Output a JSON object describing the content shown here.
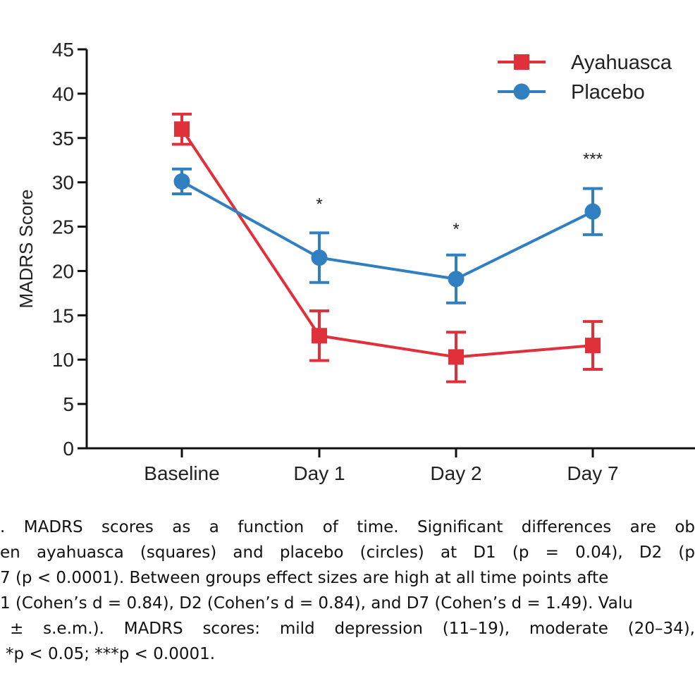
{
  "chart_data": {
    "type": "line",
    "categories": [
      "Baseline",
      "Day 1",
      "Day 2",
      "Day 7"
    ],
    "ylabel": "MADRS Score",
    "xlabel": "",
    "ylim": [
      0,
      45
    ],
    "yticks": [
      0,
      5,
      10,
      15,
      20,
      25,
      30,
      35,
      40,
      45
    ],
    "grid": false,
    "legend_position": "top-right",
    "series": [
      {
        "name": "Ayahuasca",
        "marker": "square",
        "color": "#e0303a",
        "values": [
          36.0,
          12.7,
          10.3,
          11.6
        ],
        "errors": [
          1.7,
          2.8,
          2.8,
          2.7
        ]
      },
      {
        "name": "Placebo",
        "marker": "circle",
        "color": "#2f7fc1",
        "values": [
          30.1,
          21.5,
          19.1,
          26.7
        ],
        "errors": [
          1.4,
          2.8,
          2.7,
          2.6
        ]
      }
    ],
    "annotations": [
      {
        "category": "Day 1",
        "text": "*",
        "y": 27.7
      },
      {
        "category": "Day 2",
        "text": "*",
        "y": 24.9
      },
      {
        "category": "Day 7",
        "text": "***",
        "y": 32.8
      }
    ]
  },
  "caption": {
    "lines": [
      ". MADRS scores as a function of time. Significant differences are ob",
      "en ayahuasca (squares) and placebo (circles) at D1 (p = 0.04), D2 (p",
      "7 (p < 0.0001). Between groups effect sizes are high at all time points afte",
      "1 (Cohen’s d = 0.84), D2 (Cohen’s d = 0.84), and D7 (Cohen’s d = 1.49). Valu",
      "± s.e.m.). MADRS scores: mild depression (11–19), moderate (20–34),",
      "*p < 0.05; ***p < 0.0001."
    ]
  }
}
